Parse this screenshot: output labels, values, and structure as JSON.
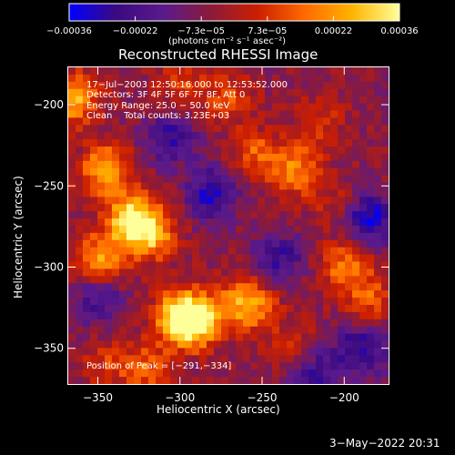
{
  "chart_data": {
    "type": "heatmap",
    "title": "Reconstructed RHESSI Image",
    "xlabel": "Heliocentric X (arcsec)",
    "ylabel": "Heliocentric Y (arcsec)",
    "xlim": [
      -368,
      -173
    ],
    "ylim": [
      -372,
      -177
    ],
    "x_ticks": [
      -350,
      -300,
      -250,
      -200
    ],
    "y_ticks": [
      -200,
      -250,
      -300,
      -350
    ],
    "x_tick_labels": [
      "−350",
      "−300",
      "−250",
      "−200"
    ],
    "y_tick_labels": [
      "−200",
      "−250",
      "−300",
      "−350"
    ],
    "colorbar": {
      "range": [
        -0.00036,
        0.00036
      ],
      "tick_labels": [
        "−0.00036",
        "−0.00022",
        "−7.3e−05",
        "7.3e−05",
        "0.00022",
        "0.00036"
      ],
      "unit_label": "(photons cm⁻² s⁻¹ asec⁻²)",
      "colormap": [
        "#0000ff",
        "#3b0a80",
        "#5a1a8c",
        "#8b1a3a",
        "#cc1f00",
        "#ff6a00",
        "#ffb400",
        "#ffff9a"
      ]
    },
    "annotations": {
      "time": "17−Jul−2003 12:50:16.000 to 12:53:52.000",
      "detectors": "Detectors: 3F 4F 5F 6F 7F 8F, Att 0",
      "energy": "Energy Range: 25.0 − 50.0 keV",
      "clean": "Clean    Total counts: 3.23E+03",
      "peak": "Position of Peak = [−291,−334]"
    },
    "bright_regions": [
      {
        "x": -330,
        "y": -270,
        "v": 0.00036
      },
      {
        "x": -300,
        "y": -330,
        "v": 0.00036
      },
      {
        "x": -291,
        "y": -334,
        "v": 0.00036
      },
      {
        "x": -318,
        "y": -280,
        "v": 0.0003
      },
      {
        "x": -345,
        "y": -240,
        "v": 0.0003
      },
      {
        "x": -348,
        "y": -295,
        "v": 0.00028
      },
      {
        "x": -365,
        "y": -196,
        "v": 0.00033
      },
      {
        "x": -230,
        "y": -240,
        "v": 0.00025
      },
      {
        "x": -255,
        "y": -230,
        "v": 0.00018
      },
      {
        "x": -200,
        "y": -300,
        "v": 0.00022
      },
      {
        "x": -185,
        "y": -320,
        "v": 0.00018
      },
      {
        "x": -265,
        "y": -320,
        "v": 0.00016
      },
      {
        "x": -255,
        "y": -325,
        "v": 0.0002
      },
      {
        "x": -300,
        "y": -190,
        "v": 0.00014
      },
      {
        "x": -270,
        "y": -195,
        "v": 0.00016
      },
      {
        "x": -215,
        "y": -210,
        "v": 0.00012
      },
      {
        "x": -230,
        "y": -350,
        "v": 0.00014
      },
      {
        "x": -320,
        "y": -362,
        "v": 0.00018
      },
      {
        "x": -345,
        "y": -360,
        "v": 0.00012
      },
      {
        "x": -205,
        "y": -262,
        "v": 0.0001
      }
    ],
    "dark_regions": [
      {
        "x": -305,
        "y": -220,
        "v": -0.00022
      },
      {
        "x": -280,
        "y": -255,
        "v": -0.00025
      },
      {
        "x": -185,
        "y": -270,
        "v": -0.00028
      },
      {
        "x": -240,
        "y": -295,
        "v": -0.0002
      },
      {
        "x": -220,
        "y": -365,
        "v": -0.00022
      },
      {
        "x": -350,
        "y": -320,
        "v": -0.00018
      },
      {
        "x": -190,
        "y": -350,
        "v": -0.00025
      }
    ]
  },
  "footer": {
    "date": "3−May−2022 20:31"
  }
}
